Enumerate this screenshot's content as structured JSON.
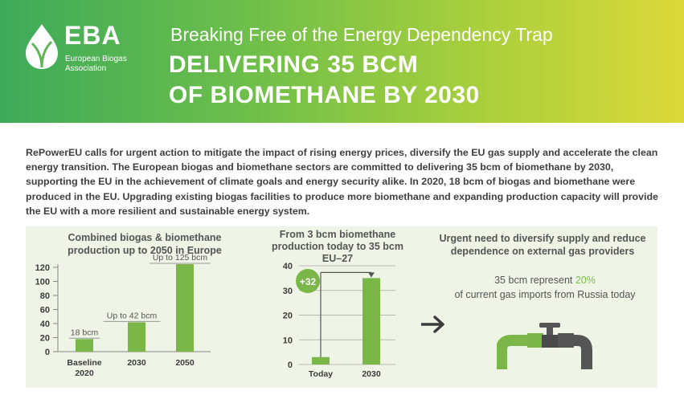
{
  "logo": {
    "name": "EBA",
    "subtitle_line1": "European Biogas",
    "subtitle_line2": "Association"
  },
  "header": {
    "kicker": "Breaking Free of the Energy Dependency Trap",
    "title_line1": "DELIVERING 35 BCM",
    "title_line2": "OF BIOMETHANE BY 2030"
  },
  "intro": "RePowerEU  calls for urgent action to mitigate the impact of rising energy prices, diversify the EU gas supply and accelerate the clean energy transition.  The European biogas and biomethane sectors are committed to delivering 35 bcm of biomethane by 2030, supporting the EU in the achievement of climate goals and energy security alike. In 2020, 18 bcm of biogas and biomethane were produced in the EU. Upgrading existing biogas facilities to produce more biomethane and expanding production capacity will provide the EU with a more resilient and sustainable energy system.",
  "colors": {
    "bar": "#7ab648",
    "panel": "#eef4e6",
    "header_start": "#3daa5a",
    "header_end": "#dcd83a",
    "highlight": "#7cbf4a"
  },
  "chart_data": [
    {
      "type": "bar",
      "title": "Combined biogas & biomethane production up to 2050 in Europe",
      "categories": [
        "Baseline 2020",
        "2030",
        "2050"
      ],
      "category_lines": [
        [
          "Baseline",
          "2020"
        ],
        [
          "2030"
        ],
        [
          "2050"
        ]
      ],
      "values": [
        18,
        42,
        125
      ],
      "data_labels": [
        "18 bcm",
        "Up to 42 bcm",
        "Up to 125 bcm"
      ],
      "yticks": [
        0,
        20,
        40,
        60,
        80,
        100,
        120
      ],
      "ylim": [
        0,
        125
      ],
      "grid": false
    },
    {
      "type": "bar",
      "title": "From 3 bcm biomethane production today to 35 bcm EU–27",
      "title_lines": [
        "From 3 bcm biomethane",
        "production today to 35 bcm",
        "EU–27"
      ],
      "categories": [
        "Today",
        "2030"
      ],
      "values": [
        3,
        35
      ],
      "yticks": [
        0,
        10,
        20,
        30,
        40
      ],
      "ylim": [
        0,
        40
      ],
      "grid": true,
      "annotation": "+32"
    }
  ],
  "col3": {
    "title": "Urgent need to diversify supply and reduce dependence on external gas providers",
    "text_prefix": "35 bcm represent ",
    "text_highlight": "20%",
    "text_suffix": "of current gas imports from Russia today",
    "arrow_icon": "arrow-right-icon",
    "pipe_icon": "pipeline-valve-icon"
  }
}
